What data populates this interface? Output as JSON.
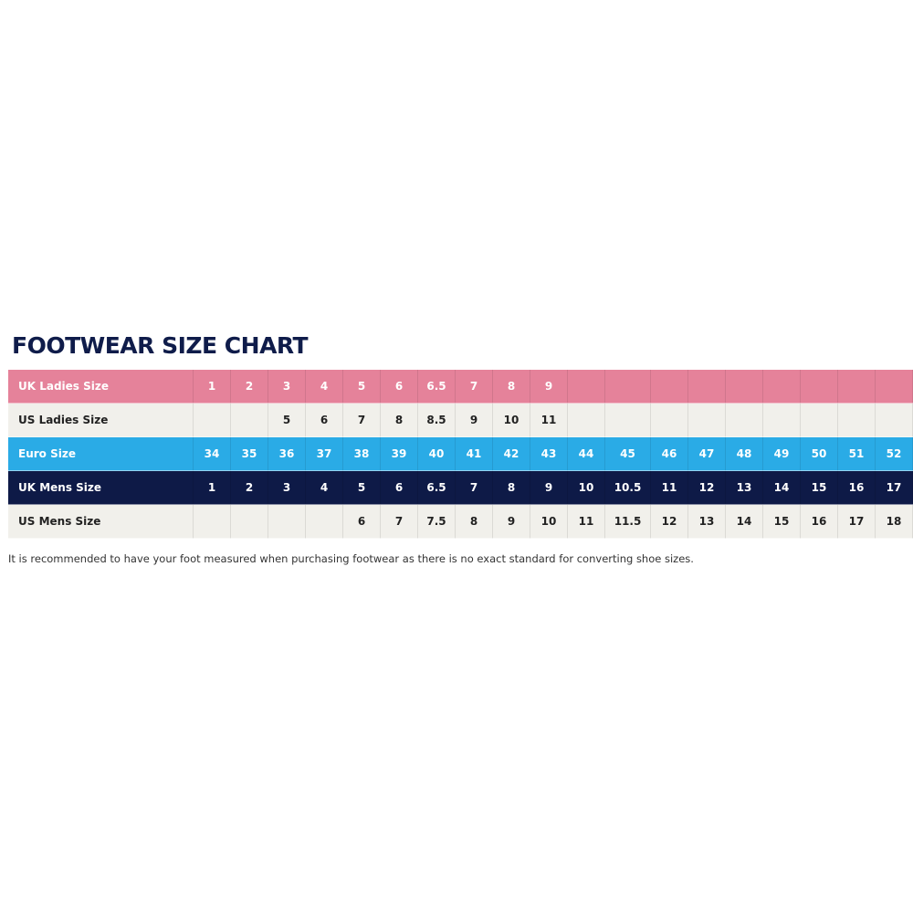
{
  "title": "FOOTWEAR SIZE CHART",
  "rows": [
    {
      "label": "UK Ladies Size",
      "color": "#e5829a",
      "cells": [
        "1",
        "2",
        "3",
        "4",
        "5",
        "6",
        "6.5",
        "7",
        "8",
        "9",
        "",
        "",
        "",
        "",
        "",
        "",
        "",
        "",
        ""
      ]
    },
    {
      "label": "US Ladies Size",
      "color": "#f1f0eb",
      "cells": [
        "",
        "",
        "5",
        "6",
        "7",
        "8",
        "8.5",
        "9",
        "10",
        "11",
        "",
        "",
        "",
        "",
        "",
        "",
        "",
        "",
        ""
      ]
    },
    {
      "label": "Euro Size",
      "color": "#2aabe6",
      "cells": [
        "34",
        "35",
        "36",
        "37",
        "38",
        "39",
        "40",
        "41",
        "42",
        "43",
        "44",
        "45",
        "46",
        "47",
        "48",
        "49",
        "50",
        "51",
        "52"
      ]
    },
    {
      "label": "UK Mens Size",
      "color": "#0e1a47",
      "cells": [
        "1",
        "2",
        "3",
        "4",
        "5",
        "6",
        "6.5",
        "7",
        "8",
        "9",
        "10",
        "10.5",
        "11",
        "12",
        "13",
        "14",
        "15",
        "16",
        "17"
      ]
    },
    {
      "label": "US Mens Size",
      "color": "#f1f0eb",
      "cells": [
        "",
        "",
        "",
        "",
        "6",
        "7",
        "7.5",
        "8",
        "9",
        "10",
        "11",
        "11.5",
        "12",
        "13",
        "14",
        "15",
        "16",
        "17",
        "18"
      ]
    }
  ],
  "note": "It is recommended to have your foot measured when purchasing footwear as there is no exact standard for converting shoe sizes."
}
